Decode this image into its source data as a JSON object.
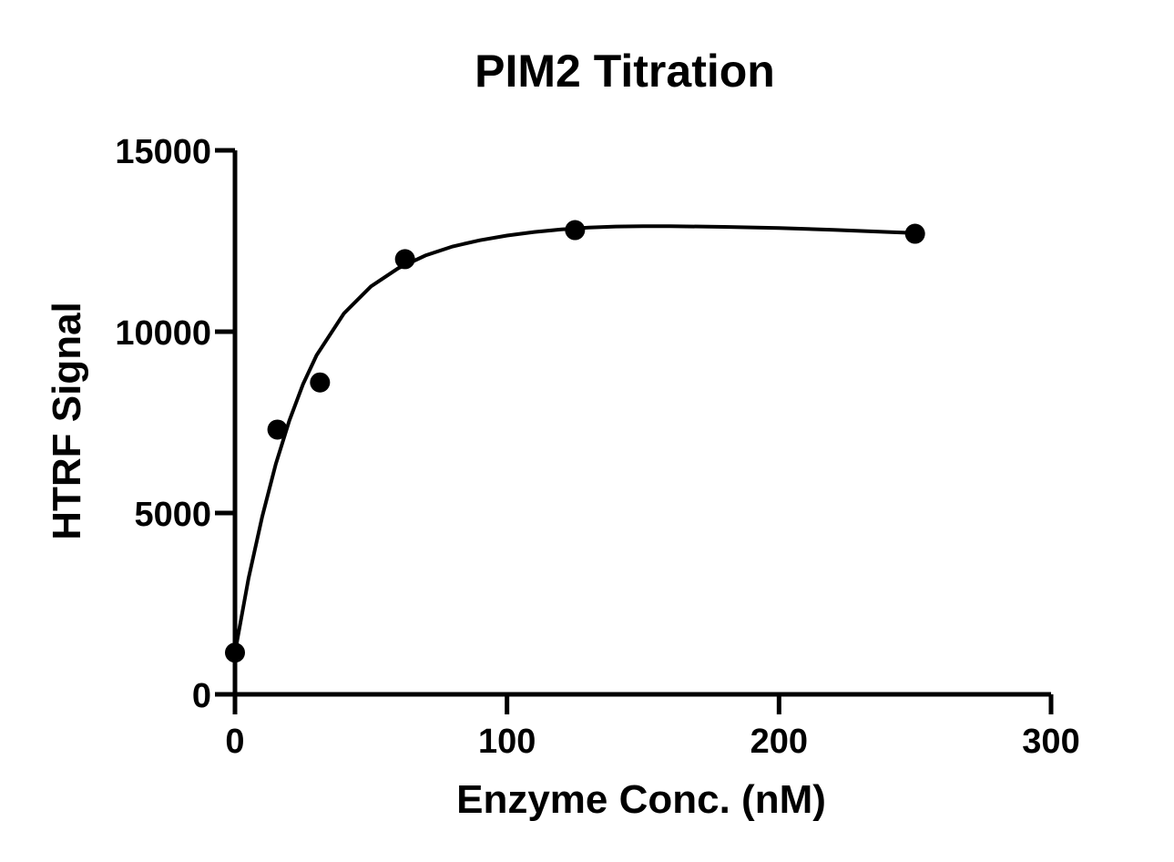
{
  "chart_data": {
    "type": "scatter",
    "title": "PIM2 Titration",
    "xlabel": "Enzyme Conc. (nM)",
    "ylabel": "HTRF Signal",
    "xlim": [
      0,
      300
    ],
    "ylim": [
      0,
      15000
    ],
    "xticks": [
      0,
      100,
      200,
      300
    ],
    "yticks": [
      0,
      5000,
      10000,
      15000
    ],
    "xtick_labels": [
      "0",
      "100",
      "200",
      "300"
    ],
    "ytick_labels": [
      "0",
      "5000",
      "10000",
      "15000"
    ],
    "grid": false,
    "legend": "none",
    "series": [
      {
        "x": [
          0,
          15.6,
          31.25,
          62.5,
          125,
          250
        ],
        "y": [
          1150,
          7300,
          8600,
          12000,
          12800,
          12700
        ],
        "marker": "filled-circle",
        "color": "#000000"
      }
    ],
    "fit_curve": {
      "x": [
        0,
        5,
        10,
        15,
        20,
        25,
        30,
        40,
        50,
        60,
        70,
        80,
        90,
        100,
        110,
        120,
        130,
        140,
        150,
        160,
        180,
        200,
        220,
        240,
        250
      ],
      "y": [
        1150,
        3200,
        4900,
        6350,
        7550,
        8550,
        9350,
        10500,
        11250,
        11750,
        12100,
        12350,
        12520,
        12650,
        12750,
        12820,
        12870,
        12900,
        12910,
        12910,
        12890,
        12860,
        12810,
        12750,
        12720
      ],
      "color": "#000000"
    }
  }
}
